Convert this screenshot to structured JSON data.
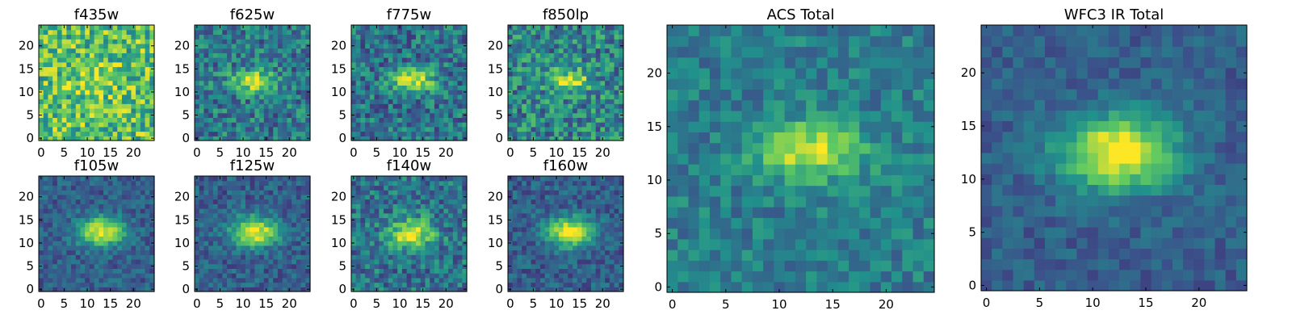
{
  "figure": {
    "colormap": "viridis",
    "colormap_stops": [
      "#440154",
      "#3b528b",
      "#21918c",
      "#5ec962",
      "#fde725"
    ]
  },
  "chart_data": [
    {
      "type": "heatmap",
      "title": "f435w",
      "grid": "25x25",
      "xlim": [
        0,
        24
      ],
      "ylim": [
        0,
        24
      ],
      "xticks": [
        "0",
        "5",
        "10",
        "15",
        "20"
      ],
      "yticks": [
        "0",
        "5",
        "10",
        "15",
        "20"
      ],
      "source": {
        "x": 12,
        "y": 12,
        "sx": 3.0,
        "sy": 2.0,
        "amp": 0.25,
        "base": 0.7,
        "noise": 0.28
      }
    },
    {
      "type": "heatmap",
      "title": "f625w",
      "grid": "25x25",
      "xlim": [
        0,
        24
      ],
      "ylim": [
        0,
        24
      ],
      "xticks": [
        "0",
        "5",
        "10",
        "15",
        "20"
      ],
      "yticks": [
        "0",
        "5",
        "10",
        "15",
        "20"
      ],
      "source": {
        "x": 12,
        "y": 12.5,
        "sx": 3.2,
        "sy": 1.6,
        "amp": 0.55,
        "base": 0.4,
        "noise": 0.22
      }
    },
    {
      "type": "heatmap",
      "title": "f775w",
      "grid": "25x25",
      "xlim": [
        0,
        24
      ],
      "ylim": [
        0,
        24
      ],
      "xticks": [
        "0",
        "5",
        "10",
        "15",
        "20"
      ],
      "yticks": [
        "0",
        "5",
        "10",
        "15",
        "20"
      ],
      "source": {
        "x": 13,
        "y": 12.5,
        "sx": 3.2,
        "sy": 1.7,
        "amp": 0.55,
        "base": 0.38,
        "noise": 0.22
      }
    },
    {
      "type": "heatmap",
      "title": "f850lp",
      "grid": "25x25",
      "xlim": [
        0,
        24
      ],
      "ylim": [
        0,
        24
      ],
      "xticks": [
        "0",
        "5",
        "10",
        "15",
        "20"
      ],
      "yticks": [
        "0",
        "5",
        "10",
        "15",
        "20"
      ],
      "source": {
        "x": 13,
        "y": 12.5,
        "sx": 3.0,
        "sy": 1.8,
        "amp": 0.45,
        "base": 0.45,
        "noise": 0.25
      }
    },
    {
      "type": "heatmap",
      "title": "f105w",
      "grid": "25x25",
      "xlim": [
        0,
        24
      ],
      "ylim": [
        0,
        24
      ],
      "xticks": [
        "0",
        "5",
        "10",
        "15",
        "20"
      ],
      "yticks": [
        "0",
        "5",
        "10",
        "15",
        "20"
      ],
      "source": {
        "x": 13,
        "y": 12.5,
        "sx": 3.5,
        "sy": 2.2,
        "amp": 0.7,
        "base": 0.3,
        "noise": 0.13
      }
    },
    {
      "type": "heatmap",
      "title": "f125w",
      "grid": "25x25",
      "xlim": [
        0,
        24
      ],
      "ylim": [
        0,
        24
      ],
      "xticks": [
        "0",
        "5",
        "10",
        "15",
        "20"
      ],
      "yticks": [
        "0",
        "5",
        "10",
        "15",
        "20"
      ],
      "source": {
        "x": 12.5,
        "y": 12.5,
        "sx": 3.5,
        "sy": 2.2,
        "amp": 0.7,
        "base": 0.3,
        "noise": 0.14
      }
    },
    {
      "type": "heatmap",
      "title": "f140w",
      "grid": "25x25",
      "xlim": [
        0,
        24
      ],
      "ylim": [
        0,
        24
      ],
      "xticks": [
        "0",
        "5",
        "10",
        "15",
        "20"
      ],
      "yticks": [
        "0",
        "5",
        "10",
        "15",
        "20"
      ],
      "source": {
        "x": 12.5,
        "y": 12,
        "sx": 3.3,
        "sy": 2.2,
        "amp": 0.6,
        "base": 0.38,
        "noise": 0.2
      }
    },
    {
      "type": "heatmap",
      "title": "f160w",
      "grid": "25x25",
      "xlim": [
        0,
        24
      ],
      "ylim": [
        0,
        24
      ],
      "xticks": [
        "0",
        "5",
        "10",
        "15",
        "20"
      ],
      "yticks": [
        "0",
        "5",
        "10",
        "15",
        "20"
      ],
      "source": {
        "x": 13,
        "y": 12.5,
        "sx": 3.6,
        "sy": 2.2,
        "amp": 0.7,
        "base": 0.3,
        "noise": 0.14
      }
    },
    {
      "type": "heatmap",
      "title": "ACS Total",
      "grid": "25x25",
      "xlim": [
        0,
        24
      ],
      "ylim": [
        0,
        24
      ],
      "xticks": [
        "0",
        "5",
        "10",
        "15",
        "20"
      ],
      "yticks": [
        "0",
        "5",
        "10",
        "15",
        "20"
      ],
      "source": {
        "x": 13,
        "y": 12.8,
        "sx": 3.4,
        "sy": 1.8,
        "amp": 0.55,
        "base": 0.42,
        "noise": 0.14
      }
    },
    {
      "type": "heatmap",
      "title": "WFC3 IR Total",
      "grid": "25x25",
      "xlim": [
        0,
        24
      ],
      "ylim": [
        0,
        24
      ],
      "xticks": [
        "0",
        "5",
        "10",
        "15",
        "20"
      ],
      "yticks": [
        "0",
        "5",
        "10",
        "15",
        "20"
      ],
      "source": {
        "x": 12.5,
        "y": 12.5,
        "sx": 3.8,
        "sy": 2.4,
        "amp": 0.75,
        "base": 0.3,
        "noise": 0.1
      }
    }
  ]
}
